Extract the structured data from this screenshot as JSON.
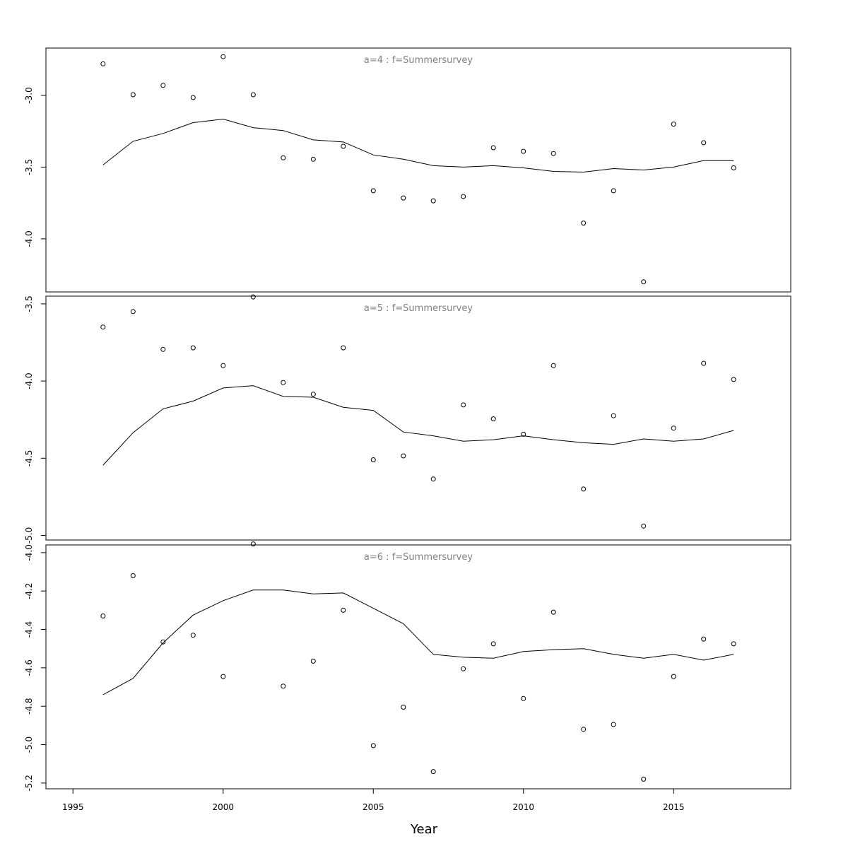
{
  "chart_data": {
    "type": "line",
    "xlabel": "Year",
    "xlim": [
      1994.1,
      2018.9
    ],
    "xticks": [
      1995,
      2000,
      2005,
      2010,
      2015
    ],
    "x": [
      1996,
      1997,
      1998,
      1999,
      2000,
      2001,
      2002,
      2003,
      2004,
      2005,
      2006,
      2007,
      2008,
      2009,
      2010,
      2011,
      2012,
      2013,
      2014,
      2015,
      2016,
      2017
    ],
    "panels": [
      {
        "title": "a=4  :  f=Summersurvey",
        "ylim": [
          -4.37,
          -2.67
        ],
        "yticks": [
          -3.0,
          -3.5,
          -4.0
        ],
        "ytick_labels": [
          "-3.0",
          "-3.5",
          "-4.0"
        ],
        "series": [
          {
            "type": "scatter",
            "values": [
              -2.78,
              -2.995,
              -2.93,
              -3.015,
              -2.73,
              -2.995,
              -3.435,
              -3.445,
              -3.355,
              -3.665,
              -3.715,
              -3.735,
              -3.705,
              -3.365,
              -3.39,
              -3.405,
              -3.89,
              -3.665,
              -4.3,
              -3.2,
              -3.33,
              -3.505
            ]
          },
          {
            "type": "line",
            "values": [
              -3.485,
              -3.32,
              -3.265,
              -3.19,
              -3.165,
              -3.225,
              -3.245,
              -3.31,
              -3.325,
              -3.415,
              -3.445,
              -3.49,
              -3.5,
              -3.49,
              -3.505,
              -3.53,
              -3.535,
              -3.51,
              -3.52,
              -3.5,
              -3.455,
              -3.455
            ]
          }
        ]
      },
      {
        "title": "a=5  :  f=Summersurvey",
        "ylim": [
          -5.03,
          -3.45
        ],
        "yticks": [
          -3.5,
          -4.0,
          -4.5,
          -5.0
        ],
        "ytick_labels": [
          "-3.5",
          "-4.0",
          "-4.5",
          "-5.0"
        ],
        "series": [
          {
            "type": "scatter",
            "values": [
              -3.65,
              -3.55,
              -3.795,
              -3.785,
              -3.9,
              -3.455,
              -4.01,
              -4.085,
              -3.785,
              -4.51,
              -4.485,
              -4.635,
              -4.155,
              -4.245,
              -4.345,
              -3.9,
              -4.7,
              -4.225,
              -4.94,
              -4.305,
              -3.885,
              -3.99
            ]
          },
          {
            "type": "line",
            "values": [
              -4.545,
              -4.335,
              -4.18,
              -4.13,
              -4.045,
              -4.03,
              -4.1,
              -4.105,
              -4.17,
              -4.19,
              -4.33,
              -4.355,
              -4.39,
              -4.38,
              -4.355,
              -4.38,
              -4.4,
              -4.41,
              -4.375,
              -4.39,
              -4.375,
              -4.32
            ]
          }
        ]
      },
      {
        "title": "a=6  :  f=Summersurvey",
        "ylim": [
          -5.23,
          -3.96
        ],
        "yticks": [
          -4.0,
          -4.2,
          -4.4,
          -4.6,
          -4.8,
          -5.0,
          -5.2
        ],
        "ytick_labels": [
          "-4.0",
          "-4.2",
          "-4.4",
          "-4.6",
          "-4.8",
          "-5.0",
          "-5.2"
        ],
        "series": [
          {
            "type": "scatter",
            "values": [
              -4.33,
              -4.12,
              -4.465,
              -4.43,
              -4.645,
              -3.955,
              -4.695,
              -4.565,
              -4.3,
              -5.005,
              -4.805,
              -5.14,
              -4.605,
              -4.475,
              -4.76,
              -4.31,
              -4.92,
              -4.895,
              -5.18,
              -4.645,
              -4.45,
              -4.475
            ]
          },
          {
            "type": "line",
            "values": [
              -4.74,
              -4.655,
              -4.47,
              -4.325,
              -4.25,
              -4.195,
              -4.195,
              -4.215,
              -4.21,
              -4.29,
              -4.37,
              -4.53,
              -4.545,
              -4.55,
              -4.515,
              -4.505,
              -4.5,
              -4.53,
              -4.55,
              -4.53,
              -4.56,
              -4.53
            ]
          }
        ]
      }
    ]
  }
}
